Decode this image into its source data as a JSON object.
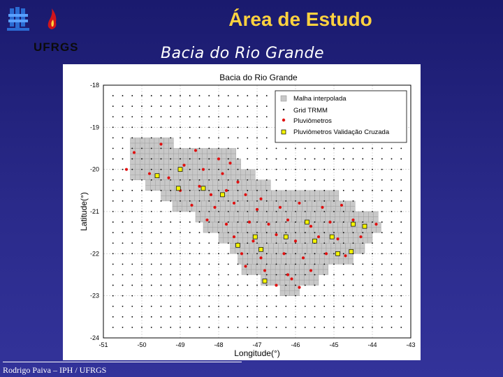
{
  "header": {
    "logo_text": "UFRGS",
    "title": "Área de Estudo",
    "subtitle": "Bacia do Rio Grande"
  },
  "footer": {
    "text": "Rodrigo Paiva – IPH / UFRGS"
  },
  "colors": {
    "background": "#22227a",
    "title": "#ffd23f",
    "mesh": "#c8c8c8",
    "gauge": "#e01010",
    "validation_gauge": "#f4f400"
  },
  "chart_data": {
    "type": "scatter",
    "title": "Bacia do Rio Grande",
    "xlabel": "Longitude(°)",
    "ylabel": "Latitude(°)",
    "xlim": [
      -51,
      -43
    ],
    "ylim": [
      -24,
      -18
    ],
    "x_ticks": [
      "-51",
      "-50",
      "-49",
      "-48",
      "-47",
      "-46",
      "-45",
      "-44",
      "-43"
    ],
    "y_ticks": [
      "-18",
      "-19",
      "-20",
      "-21",
      "-22",
      "-23",
      "-24"
    ],
    "grid": true,
    "legend_position": "top-right",
    "legend": [
      "Malha interpolada",
      "Grid TRMM",
      "Pluviômetros",
      "Pluviômetros Validação Cruzada"
    ],
    "series": [
      {
        "name": "Grid TRMM",
        "marker": "dot",
        "spacing": 0.25
      },
      {
        "name": "Pluviômetros",
        "marker": "red-dot",
        "points": [
          [
            -50.2,
            -19.6
          ],
          [
            -49.5,
            -19.4
          ],
          [
            -48.6,
            -19.55
          ],
          [
            -48.0,
            -19.75
          ],
          [
            -47.7,
            -19.85
          ],
          [
            -50.4,
            -20.0
          ],
          [
            -49.8,
            -20.1
          ],
          [
            -49.3,
            -20.2
          ],
          [
            -48.9,
            -19.9
          ],
          [
            -48.4,
            -20.0
          ],
          [
            -47.9,
            -20.1
          ],
          [
            -47.5,
            -20.3
          ],
          [
            -49.0,
            -20.5
          ],
          [
            -48.5,
            -20.4
          ],
          [
            -48.2,
            -20.6
          ],
          [
            -47.8,
            -20.5
          ],
          [
            -47.3,
            -20.6
          ],
          [
            -46.9,
            -20.7
          ],
          [
            -48.7,
            -20.85
          ],
          [
            -48.1,
            -20.9
          ],
          [
            -47.6,
            -20.8
          ],
          [
            -47.0,
            -20.95
          ],
          [
            -46.4,
            -20.9
          ],
          [
            -45.9,
            -20.8
          ],
          [
            -45.3,
            -20.9
          ],
          [
            -44.8,
            -20.85
          ],
          [
            -48.3,
            -21.2
          ],
          [
            -47.8,
            -21.3
          ],
          [
            -47.2,
            -21.25
          ],
          [
            -46.7,
            -21.3
          ],
          [
            -46.2,
            -21.2
          ],
          [
            -45.6,
            -21.35
          ],
          [
            -45.1,
            -21.25
          ],
          [
            -44.5,
            -21.2
          ],
          [
            -43.9,
            -21.3
          ],
          [
            -47.6,
            -21.6
          ],
          [
            -47.1,
            -21.7
          ],
          [
            -46.5,
            -21.55
          ],
          [
            -46.0,
            -21.7
          ],
          [
            -45.4,
            -21.6
          ],
          [
            -44.9,
            -21.65
          ],
          [
            -44.3,
            -21.6
          ],
          [
            -47.4,
            -22.0
          ],
          [
            -46.9,
            -22.1
          ],
          [
            -46.3,
            -22.0
          ],
          [
            -45.8,
            -22.1
          ],
          [
            -45.2,
            -22.0
          ],
          [
            -44.7,
            -22.05
          ],
          [
            -46.8,
            -22.4
          ],
          [
            -46.2,
            -22.5
          ],
          [
            -45.6,
            -22.4
          ],
          [
            -47.3,
            -22.3
          ],
          [
            -46.5,
            -22.75
          ],
          [
            -45.9,
            -22.8
          ],
          [
            -46.1,
            -22.6
          ]
        ]
      },
      {
        "name": "Pluviômetros Validação Cruzada",
        "marker": "yellow-square",
        "points": [
          [
            -49.6,
            -20.15
          ],
          [
            -49.0,
            -20.0
          ],
          [
            -49.05,
            -20.45
          ],
          [
            -48.4,
            -20.45
          ],
          [
            -47.9,
            -20.6
          ],
          [
            -47.05,
            -21.6
          ],
          [
            -46.25,
            -21.6
          ],
          [
            -45.5,
            -21.7
          ],
          [
            -44.5,
            -21.3
          ],
          [
            -44.2,
            -21.35
          ],
          [
            -47.5,
            -21.8
          ],
          [
            -46.9,
            -21.9
          ],
          [
            -45.05,
            -21.6
          ],
          [
            -45.7,
            -21.25
          ],
          [
            -44.9,
            -22.0
          ],
          [
            -44.55,
            -21.95
          ],
          [
            -46.8,
            -22.65
          ]
        ]
      }
    ]
  }
}
